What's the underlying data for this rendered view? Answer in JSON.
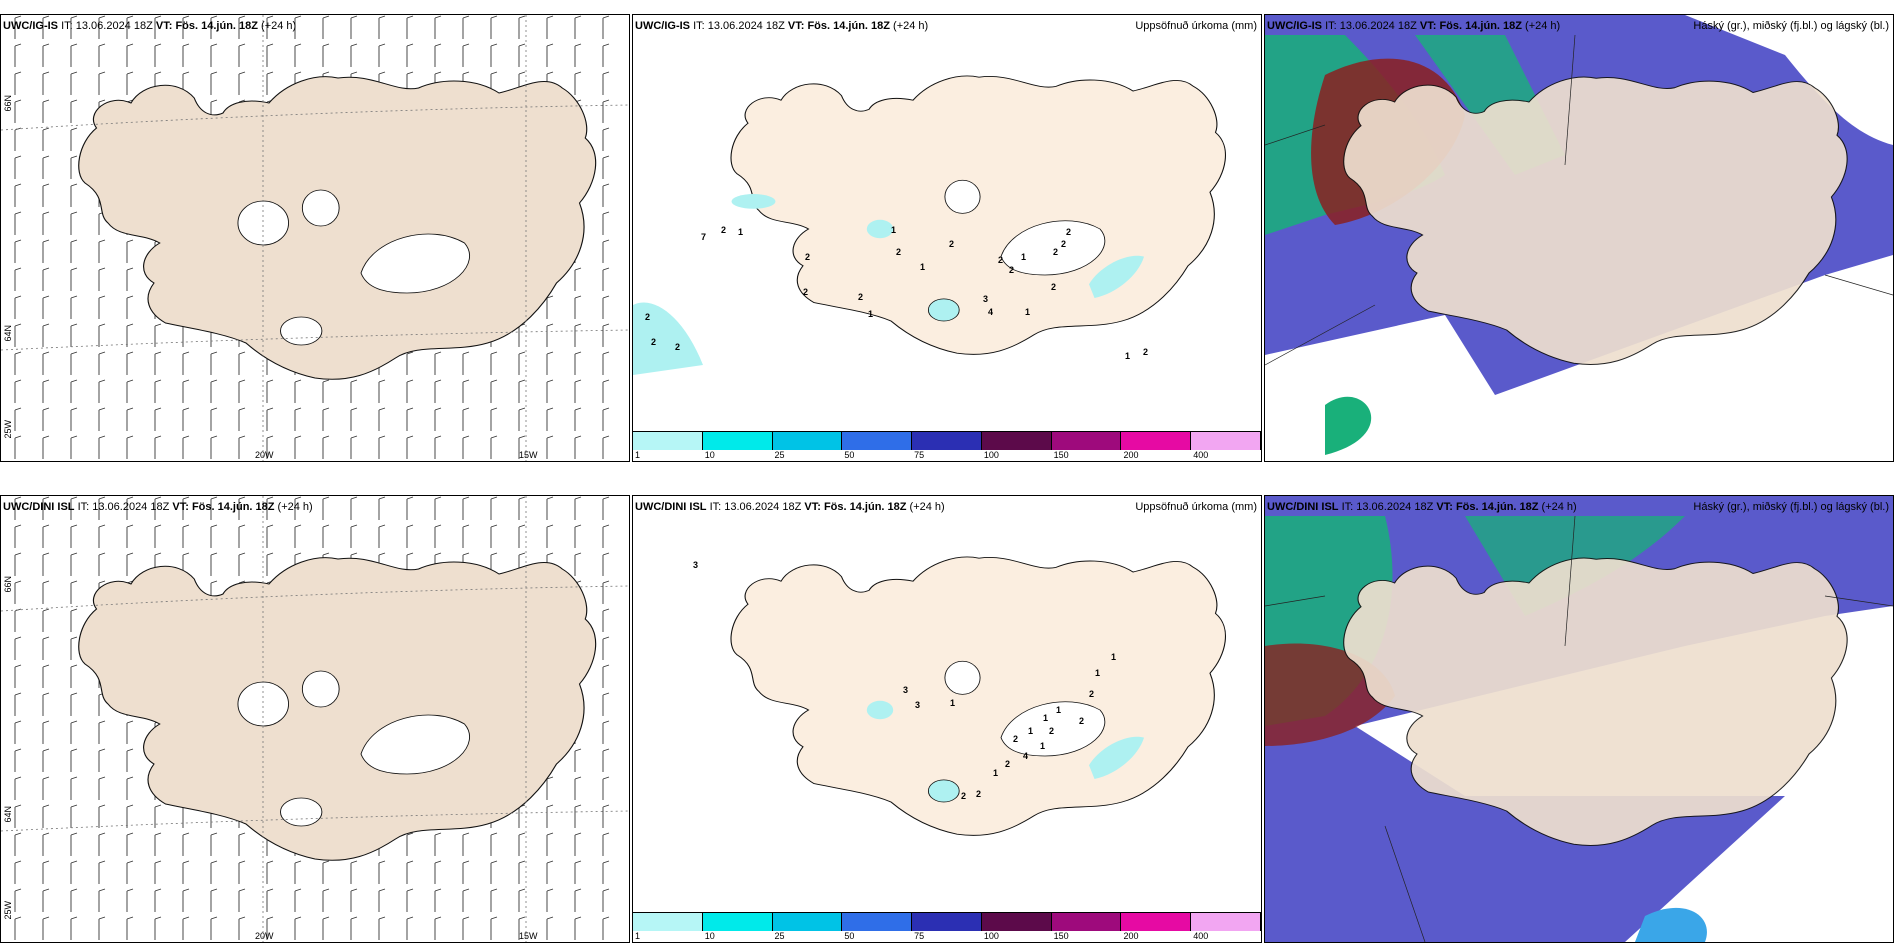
{
  "rows": [
    {
      "model": "UWC/IG-IS",
      "it_label": "IT:",
      "it_value": "13.06.2024 18Z",
      "vt_label": "VT:",
      "vt_value": "Fös. 14.jún. 18Z",
      "lead": "(+24 h)",
      "precip_values": [
        "2",
        "2",
        "2",
        "7",
        "2",
        "1",
        "1",
        "2",
        "2",
        "1",
        "2",
        "2",
        "2",
        "1",
        "3",
        "4",
        "2",
        "2",
        "1",
        "2",
        "2",
        "2",
        "2",
        "1",
        "2",
        "1"
      ]
    },
    {
      "model": "UWC/DINI ISL",
      "it_label": "IT:",
      "it_value": "13.06.2024 18Z",
      "vt_label": "VT:",
      "vt_value": "Fös. 14.jún. 18Z",
      "lead": "(+24 h)",
      "precip_values": [
        "3",
        "3",
        "3",
        "1",
        "2",
        "1",
        "1",
        "1",
        "2",
        "1",
        "4",
        "2",
        "1",
        "2",
        "2",
        "2",
        "2",
        "1",
        "1"
      ]
    }
  ],
  "panel_titles": {
    "wind": "",
    "precip": "Uppsöfnuð úrkoma (mm)",
    "cloud": "Háský (gr.), miðský (fj.bl.) og lágský (bl.)"
  },
  "axis_labels": {
    "lat_66": "66N",
    "lat_64": "64N",
    "lon_25": "25W",
    "lon_20": "20W",
    "lon_15": "15W"
  },
  "colorbar": {
    "ticks": [
      "1",
      "10",
      "25",
      "50",
      "75",
      "100",
      "150",
      "200",
      "400"
    ],
    "colors": [
      "#b6f6f6",
      "#00eaea",
      "#00c3e6",
      "#2f6ee8",
      "#2b2fb3",
      "#5c0a4a",
      "#9e0a7c",
      "#e60aa3",
      "#f2a6f2"
    ]
  },
  "colors": {
    "land": "#eedfcf",
    "land_precip": "#fbeee0",
    "low_cloud": "#5a5acb",
    "mid_cloud": "#19b07a",
    "high_cloud": "#8b2020",
    "precip_light": "#aef1f1"
  }
}
